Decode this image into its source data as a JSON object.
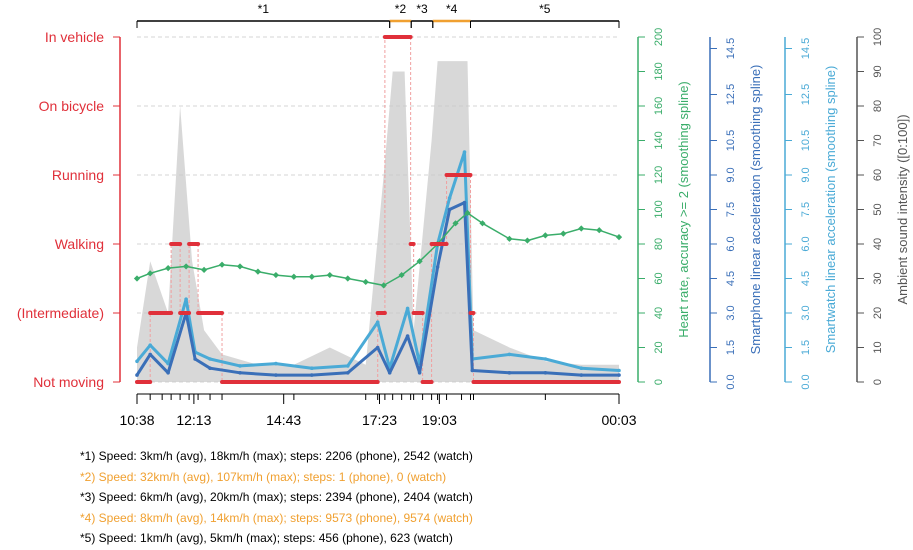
{
  "chart_data": {
    "type": "line",
    "colors": {
      "activity": "#e0303a",
      "heart_rate": "#3aad6a",
      "phone_acc": "#3a6fb8",
      "watch_acc": "#4aaad6",
      "sound": "#c8c8c8",
      "axis_sound": "#555555",
      "segment_walk": "#000000",
      "segment_vehicle": "#f0a030"
    },
    "segments": [
      {
        "label": "*1",
        "start": "10:38",
        "end": "17:40",
        "highlight": false
      },
      {
        "label": "*2",
        "start": "17:40",
        "end": "18:16",
        "highlight": true
      },
      {
        "label": "*3",
        "start": "18:16",
        "end": "18:52",
        "highlight": false
      },
      {
        "label": "*4",
        "start": "18:52",
        "end": "19:55",
        "highlight": true
      },
      {
        "label": "*5",
        "start": "19:55",
        "end": "00:03",
        "highlight": false
      }
    ],
    "x_axis": {
      "tick_labels": [
        "10:38",
        "12:13",
        "14:43",
        "17:23",
        "19:03",
        "00:03"
      ],
      "range": [
        "10:38",
        "00:03"
      ]
    },
    "left_axis": {
      "categories": [
        "Not moving",
        "(Intermediate)",
        "Walking",
        "Running",
        "On bicycle",
        "In vehicle"
      ]
    },
    "right_axes": [
      {
        "id": "heart",
        "label": "Heart rate, accuracy >= 2 (smoothing spline)",
        "ylim": [
          0,
          200
        ],
        "ticks": [
          "0",
          "20",
          "40",
          "60",
          "80",
          "100",
          "120",
          "140",
          "160",
          "180",
          "200"
        ]
      },
      {
        "id": "phone",
        "label": "Smartphone linear acceleration (smoothing spline)",
        "ylim": [
          0,
          15
        ],
        "ticks": [
          "0.0",
          "1.5",
          "3.0",
          "4.5",
          "6.0",
          "7.5",
          "9.0",
          "10.5",
          "12.5",
          "14.5"
        ]
      },
      {
        "id": "watch",
        "label": "Smartwatch linear acceleration (smoothing spline)",
        "ylim": [
          0,
          15
        ],
        "ticks": [
          "0.0",
          "1.5",
          "3.0",
          "4.5",
          "6.0",
          "7.5",
          "9.0",
          "10.5",
          "12.5",
          "14.5"
        ]
      },
      {
        "id": "sound",
        "label": "Ambient sound intensity ([0:100])",
        "ylim": [
          0,
          100
        ],
        "ticks": [
          "0",
          "10",
          "20",
          "30",
          "40",
          "50",
          "60",
          "70",
          "80",
          "90",
          "100"
        ]
      }
    ],
    "series": [
      {
        "name": "Activity",
        "values": [
          {
            "t": "10:38",
            "v": 0
          },
          {
            "t": "11:00",
            "v": 1
          },
          {
            "t": "11:20",
            "v": 1
          },
          {
            "t": "11:35",
            "v": 2
          },
          {
            "t": "11:50",
            "v": 1
          },
          {
            "t": "12:05",
            "v": 2
          },
          {
            "t": "12:20",
            "v": 1
          },
          {
            "t": "12:40",
            "v": 1
          },
          {
            "t": "13:00",
            "v": 0
          },
          {
            "t": "15:00",
            "v": 0
          },
          {
            "t": "17:00",
            "v": 0
          },
          {
            "t": "17:20",
            "v": 1
          },
          {
            "t": "17:32",
            "v": 5
          },
          {
            "t": "17:45",
            "v": 5
          },
          {
            "t": "18:00",
            "v": 5
          },
          {
            "t": "18:15",
            "v": 2
          },
          {
            "t": "18:20",
            "v": 1
          },
          {
            "t": "18:35",
            "v": 0
          },
          {
            "t": "18:50",
            "v": 2
          },
          {
            "t": "19:00",
            "v": 2
          },
          {
            "t": "19:15",
            "v": 3
          },
          {
            "t": "19:40",
            "v": 3
          },
          {
            "t": "19:55",
            "v": 1
          },
          {
            "t": "20:00",
            "v": 0
          },
          {
            "t": "22:00",
            "v": 0
          },
          {
            "t": "00:03",
            "v": 0
          }
        ]
      },
      {
        "name": "Heart rate",
        "values": [
          {
            "t": "10:38",
            "v": 60
          },
          {
            "t": "11:00",
            "v": 63
          },
          {
            "t": "11:30",
            "v": 66
          },
          {
            "t": "12:00",
            "v": 67
          },
          {
            "t": "12:30",
            "v": 65
          },
          {
            "t": "13:00",
            "v": 68
          },
          {
            "t": "13:30",
            "v": 67
          },
          {
            "t": "14:00",
            "v": 64
          },
          {
            "t": "14:30",
            "v": 62
          },
          {
            "t": "15:00",
            "v": 61
          },
          {
            "t": "15:30",
            "v": 61
          },
          {
            "t": "16:00",
            "v": 62
          },
          {
            "t": "16:30",
            "v": 60
          },
          {
            "t": "17:00",
            "v": 58
          },
          {
            "t": "17:30",
            "v": 56
          },
          {
            "t": "18:00",
            "v": 62
          },
          {
            "t": "18:30",
            "v": 70
          },
          {
            "t": "19:00",
            "v": 80
          },
          {
            "t": "19:30",
            "v": 92
          },
          {
            "t": "19:50",
            "v": 98
          },
          {
            "t": "20:15",
            "v": 92
          },
          {
            "t": "21:00",
            "v": 83
          },
          {
            "t": "21:30",
            "v": 82
          },
          {
            "t": "22:00",
            "v": 85
          },
          {
            "t": "22:30",
            "v": 86
          },
          {
            "t": "23:00",
            "v": 89
          },
          {
            "t": "23:30",
            "v": 88
          },
          {
            "t": "00:03",
            "v": 84
          }
        ]
      },
      {
        "name": "Smartphone linear acceleration",
        "values": [
          {
            "t": "10:38",
            "v": 0.3
          },
          {
            "t": "11:00",
            "v": 1.2
          },
          {
            "t": "11:30",
            "v": 0.4
          },
          {
            "t": "12:00",
            "v": 3.0
          },
          {
            "t": "12:15",
            "v": 1.0
          },
          {
            "t": "12:40",
            "v": 0.6
          },
          {
            "t": "13:30",
            "v": 0.4
          },
          {
            "t": "14:30",
            "v": 0.3
          },
          {
            "t": "15:30",
            "v": 0.3
          },
          {
            "t": "16:30",
            "v": 0.4
          },
          {
            "t": "17:20",
            "v": 1.5
          },
          {
            "t": "17:40",
            "v": 0.4
          },
          {
            "t": "18:10",
            "v": 2.0
          },
          {
            "t": "18:30",
            "v": 0.4
          },
          {
            "t": "19:00",
            "v": 5.0
          },
          {
            "t": "19:20",
            "v": 7.5
          },
          {
            "t": "19:45",
            "v": 7.8
          },
          {
            "t": "19:58",
            "v": 0.5
          },
          {
            "t": "21:00",
            "v": 0.4
          },
          {
            "t": "22:00",
            "v": 0.4
          },
          {
            "t": "23:00",
            "v": 0.3
          },
          {
            "t": "00:03",
            "v": 0.3
          }
        ]
      },
      {
        "name": "Smartwatch linear acceleration",
        "values": [
          {
            "t": "10:38",
            "v": 0.9
          },
          {
            "t": "11:00",
            "v": 1.6
          },
          {
            "t": "11:30",
            "v": 0.8
          },
          {
            "t": "12:00",
            "v": 3.6
          },
          {
            "t": "12:15",
            "v": 1.3
          },
          {
            "t": "12:40",
            "v": 1.0
          },
          {
            "t": "13:30",
            "v": 0.7
          },
          {
            "t": "14:30",
            "v": 0.8
          },
          {
            "t": "15:30",
            "v": 0.6
          },
          {
            "t": "16:30",
            "v": 0.7
          },
          {
            "t": "17:20",
            "v": 2.6
          },
          {
            "t": "17:40",
            "v": 0.6
          },
          {
            "t": "18:10",
            "v": 3.2
          },
          {
            "t": "18:30",
            "v": 0.8
          },
          {
            "t": "19:00",
            "v": 6.0
          },
          {
            "t": "19:20",
            "v": 8.0
          },
          {
            "t": "19:45",
            "v": 10.0
          },
          {
            "t": "19:58",
            "v": 1.0
          },
          {
            "t": "21:00",
            "v": 1.2
          },
          {
            "t": "22:00",
            "v": 1.0
          },
          {
            "t": "23:00",
            "v": 0.6
          },
          {
            "t": "00:03",
            "v": 0.5
          }
        ]
      },
      {
        "name": "Ambient sound intensity",
        "values": [
          {
            "t": "10:38",
            "v": 10
          },
          {
            "t": "11:00",
            "v": 35
          },
          {
            "t": "11:30",
            "v": 20
          },
          {
            "t": "11:50",
            "v": 80
          },
          {
            "t": "12:10",
            "v": 35
          },
          {
            "t": "12:30",
            "v": 15
          },
          {
            "t": "13:00",
            "v": 8
          },
          {
            "t": "14:00",
            "v": 5
          },
          {
            "t": "15:00",
            "v": 5
          },
          {
            "t": "16:00",
            "v": 10
          },
          {
            "t": "17:00",
            "v": 5
          },
          {
            "t": "17:30",
            "v": 60
          },
          {
            "t": "17:45",
            "v": 90
          },
          {
            "t": "18:05",
            "v": 90
          },
          {
            "t": "18:20",
            "v": 15
          },
          {
            "t": "18:50",
            "v": 70
          },
          {
            "t": "19:00",
            "v": 93
          },
          {
            "t": "19:50",
            "v": 93
          },
          {
            "t": "20:00",
            "v": 15
          },
          {
            "t": "21:00",
            "v": 10
          },
          {
            "t": "22:00",
            "v": 6
          },
          {
            "t": "23:00",
            "v": 5
          },
          {
            "t": "00:03",
            "v": 5
          }
        ]
      }
    ],
    "notes": [
      {
        "text": "*1) Speed: 3km/h (avg), 18km/h (max); steps: 2206 (phone), 2542 (watch)",
        "highlight": false
      },
      {
        "text": "*2) Speed: 32km/h (avg), 107km/h (max); steps: 1 (phone), 0 (watch)",
        "highlight": true
      },
      {
        "text": "*3) Speed: 6km/h (avg), 20km/h (max); steps: 2394 (phone), 2404 (watch)",
        "highlight": false
      },
      {
        "text": "*4) Speed: 8km/h (avg), 14km/h (max); steps: 9573 (phone), 9574 (watch)",
        "highlight": true
      },
      {
        "text": "*5) Speed: 1km/h (avg), 5km/h (max); steps: 456 (phone), 623 (watch)",
        "highlight": false
      }
    ]
  }
}
